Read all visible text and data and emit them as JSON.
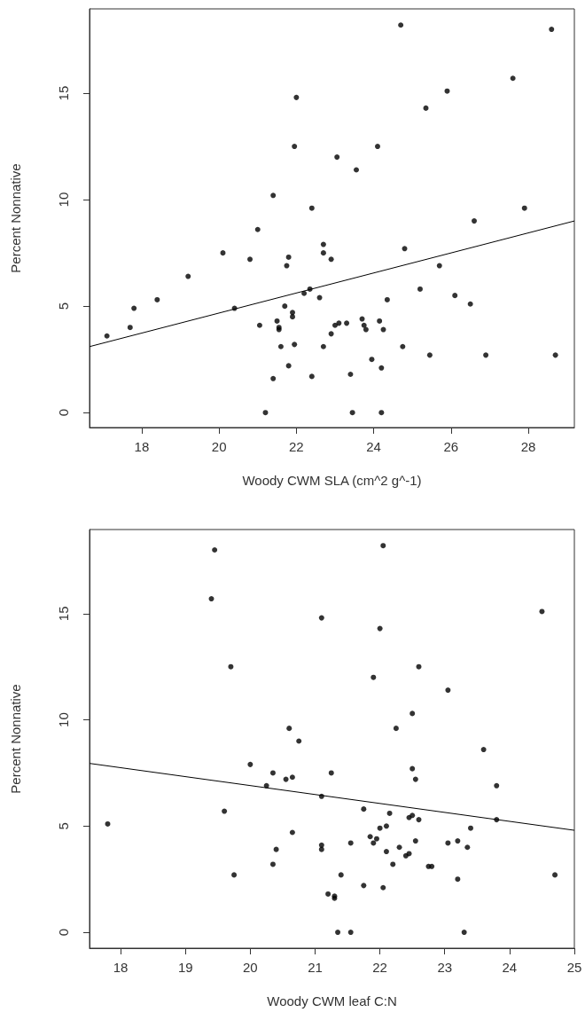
{
  "chart_data": [
    {
      "type": "scatter",
      "xlabel": "Woody CWM SLA (cm^2 g^-1)",
      "ylabel": "Percent Nonnative",
      "xlim": [
        16.65,
        29.19
      ],
      "ylim": [
        -0.7,
        18.96
      ],
      "xticks": [
        18,
        20,
        22,
        24,
        26,
        28
      ],
      "yticks": [
        0,
        5,
        10,
        15
      ],
      "marker": "circle",
      "series": [
        {
          "color": "#000000",
          "x": [
            17.1,
            17.7,
            17.8,
            18.4,
            19.2,
            20.1,
            20.4,
            20.8,
            21.0,
            21.05,
            21.2,
            21.4,
            21.4,
            21.5,
            21.55,
            21.55,
            21.6,
            21.7,
            21.75,
            21.8,
            21.8,
            21.9,
            21.9,
            21.95,
            22.0,
            21.95,
            22.2,
            22.35,
            22.4,
            22.4,
            22.6,
            22.7,
            22.7,
            22.7,
            22.9,
            22.9,
            23.0,
            23.05,
            23.1,
            23.3,
            23.4,
            23.45,
            23.55,
            23.7,
            23.75,
            23.8,
            23.95,
            24.1,
            24.15,
            24.2,
            24.2,
            24.25,
            24.35,
            24.7,
            24.75,
            24.8,
            25.2,
            25.35,
            25.45,
            25.7,
            25.9,
            26.1,
            26.5,
            26.6,
            26.9,
            27.6,
            27.9,
            28.6,
            28.7
          ],
          "values": [
            3.6,
            4.0,
            4.9,
            5.3,
            6.4,
            7.5,
            4.9,
            7.2,
            8.6,
            4.1,
            0.0,
            10.2,
            1.6,
            4.3,
            3.9,
            4.0,
            3.1,
            5.0,
            6.9,
            7.3,
            2.2,
            4.7,
            4.5,
            12.5,
            14.8,
            3.2,
            5.6,
            5.8,
            9.6,
            1.7,
            5.4,
            7.9,
            7.5,
            3.1,
            7.2,
            3.7,
            4.1,
            12.0,
            4.2,
            4.2,
            1.8,
            0.0,
            11.4,
            4.4,
            4.1,
            3.9,
            2.5,
            12.5,
            4.3,
            0.0,
            2.1,
            3.9,
            5.3,
            18.2,
            3.1,
            7.7,
            5.8,
            14.3,
            2.7,
            6.9,
            15.1,
            5.5,
            5.1,
            9.0,
            2.7,
            15.7,
            9.6,
            18.0,
            2.7
          ]
        },
        {
          "type": "line",
          "color": "#000000",
          "marker": "none",
          "x": [
            16.65,
            29.19
          ],
          "values": [
            3.1,
            9.0
          ]
        }
      ]
    },
    {
      "type": "scatter",
      "xlabel": "Woody CWM leaf C:N",
      "ylabel": "Percent Nonnative",
      "xlim": [
        17.52,
        25.0
      ],
      "ylim": [
        -0.75,
        18.96
      ],
      "xticks": [
        18,
        19,
        20,
        21,
        22,
        23,
        24,
        25
      ],
      "yticks": [
        0,
        5,
        10,
        15
      ],
      "marker": "circle",
      "series": [
        {
          "color": "#000000",
          "x": [
            17.8,
            19.4,
            19.45,
            19.6,
            19.7,
            19.75,
            20.0,
            20.25,
            20.35,
            20.35,
            20.4,
            20.55,
            20.6,
            20.65,
            20.65,
            20.75,
            21.1,
            21.1,
            21.1,
            21.1,
            21.2,
            21.25,
            21.3,
            21.3,
            21.35,
            21.4,
            21.55,
            21.55,
            21.75,
            21.75,
            21.85,
            21.9,
            21.9,
            21.95,
            22.0,
            22.0,
            22.05,
            22.05,
            22.1,
            22.1,
            22.15,
            22.2,
            22.25,
            22.3,
            22.4,
            22.45,
            22.45,
            22.5,
            22.5,
            22.5,
            22.55,
            22.55,
            22.6,
            22.6,
            22.75,
            22.8,
            23.05,
            23.05,
            23.2,
            23.2,
            23.3,
            23.35,
            23.4,
            23.6,
            23.8,
            23.8,
            24.5,
            24.7
          ],
          "values": [
            5.1,
            15.7,
            18.0,
            5.7,
            12.5,
            2.7,
            7.9,
            6.9,
            7.5,
            3.2,
            3.9,
            7.2,
            9.6,
            7.3,
            4.7,
            9.0,
            14.8,
            6.4,
            4.1,
            3.9,
            1.8,
            7.5,
            1.7,
            1.6,
            0.0,
            2.7,
            4.2,
            0.0,
            2.2,
            5.8,
            4.5,
            12.0,
            4.2,
            4.4,
            14.3,
            4.9,
            18.2,
            2.1,
            5.0,
            3.8,
            5.6,
            3.2,
            9.6,
            4.0,
            3.6,
            3.7,
            5.4,
            5.5,
            10.3,
            7.7,
            7.2,
            4.3,
            5.3,
            12.5,
            3.1,
            3.1,
            11.4,
            4.2,
            2.5,
            4.3,
            0.0,
            4.0,
            4.9,
            8.6,
            6.9,
            5.3,
            15.1,
            2.7
          ]
        },
        {
          "type": "line",
          "color": "#000000",
          "marker": "none",
          "x": [
            17.52,
            25.0
          ],
          "values": [
            7.95,
            4.8
          ]
        }
      ]
    }
  ]
}
